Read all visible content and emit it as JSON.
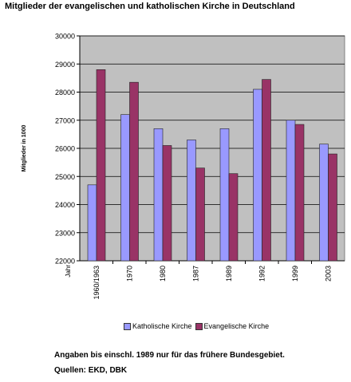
{
  "chart_data": {
    "type": "bar",
    "title": "Mitglieder der evangelischen und katholischen Kirche in Deutschland",
    "xlabel": "Jahr",
    "ylabel": "Mitglieder in 1000",
    "categories": [
      "1960/1963",
      "1970",
      "1980",
      "1987",
      "1989",
      "1992",
      "1999",
      "2003"
    ],
    "ylim": [
      22000,
      30000
    ],
    "yticks": [
      "22000",
      "23000",
      "24000",
      "25000",
      "26000",
      "27000",
      "28000",
      "29000",
      "30000"
    ],
    "grid": true,
    "legend_position": "bottom",
    "series": [
      {
        "name": "Katholische Kirche",
        "color": "#9999ff",
        "values": [
          24700,
          27200,
          26700,
          26300,
          26700,
          28100,
          27000,
          26150
        ]
      },
      {
        "name": "Evangelische Kirche",
        "color": "#993366",
        "values": [
          28800,
          28350,
          26100,
          25300,
          25100,
          28450,
          26850,
          25800
        ]
      }
    ],
    "colors": {
      "plot_background": "#c0c0c0",
      "gridline": "#000000"
    }
  },
  "note": "Angaben bis einschl. 1989 nur für das frühere Bundesgebiet.",
  "sources": "Quellen: EKD, DBK"
}
